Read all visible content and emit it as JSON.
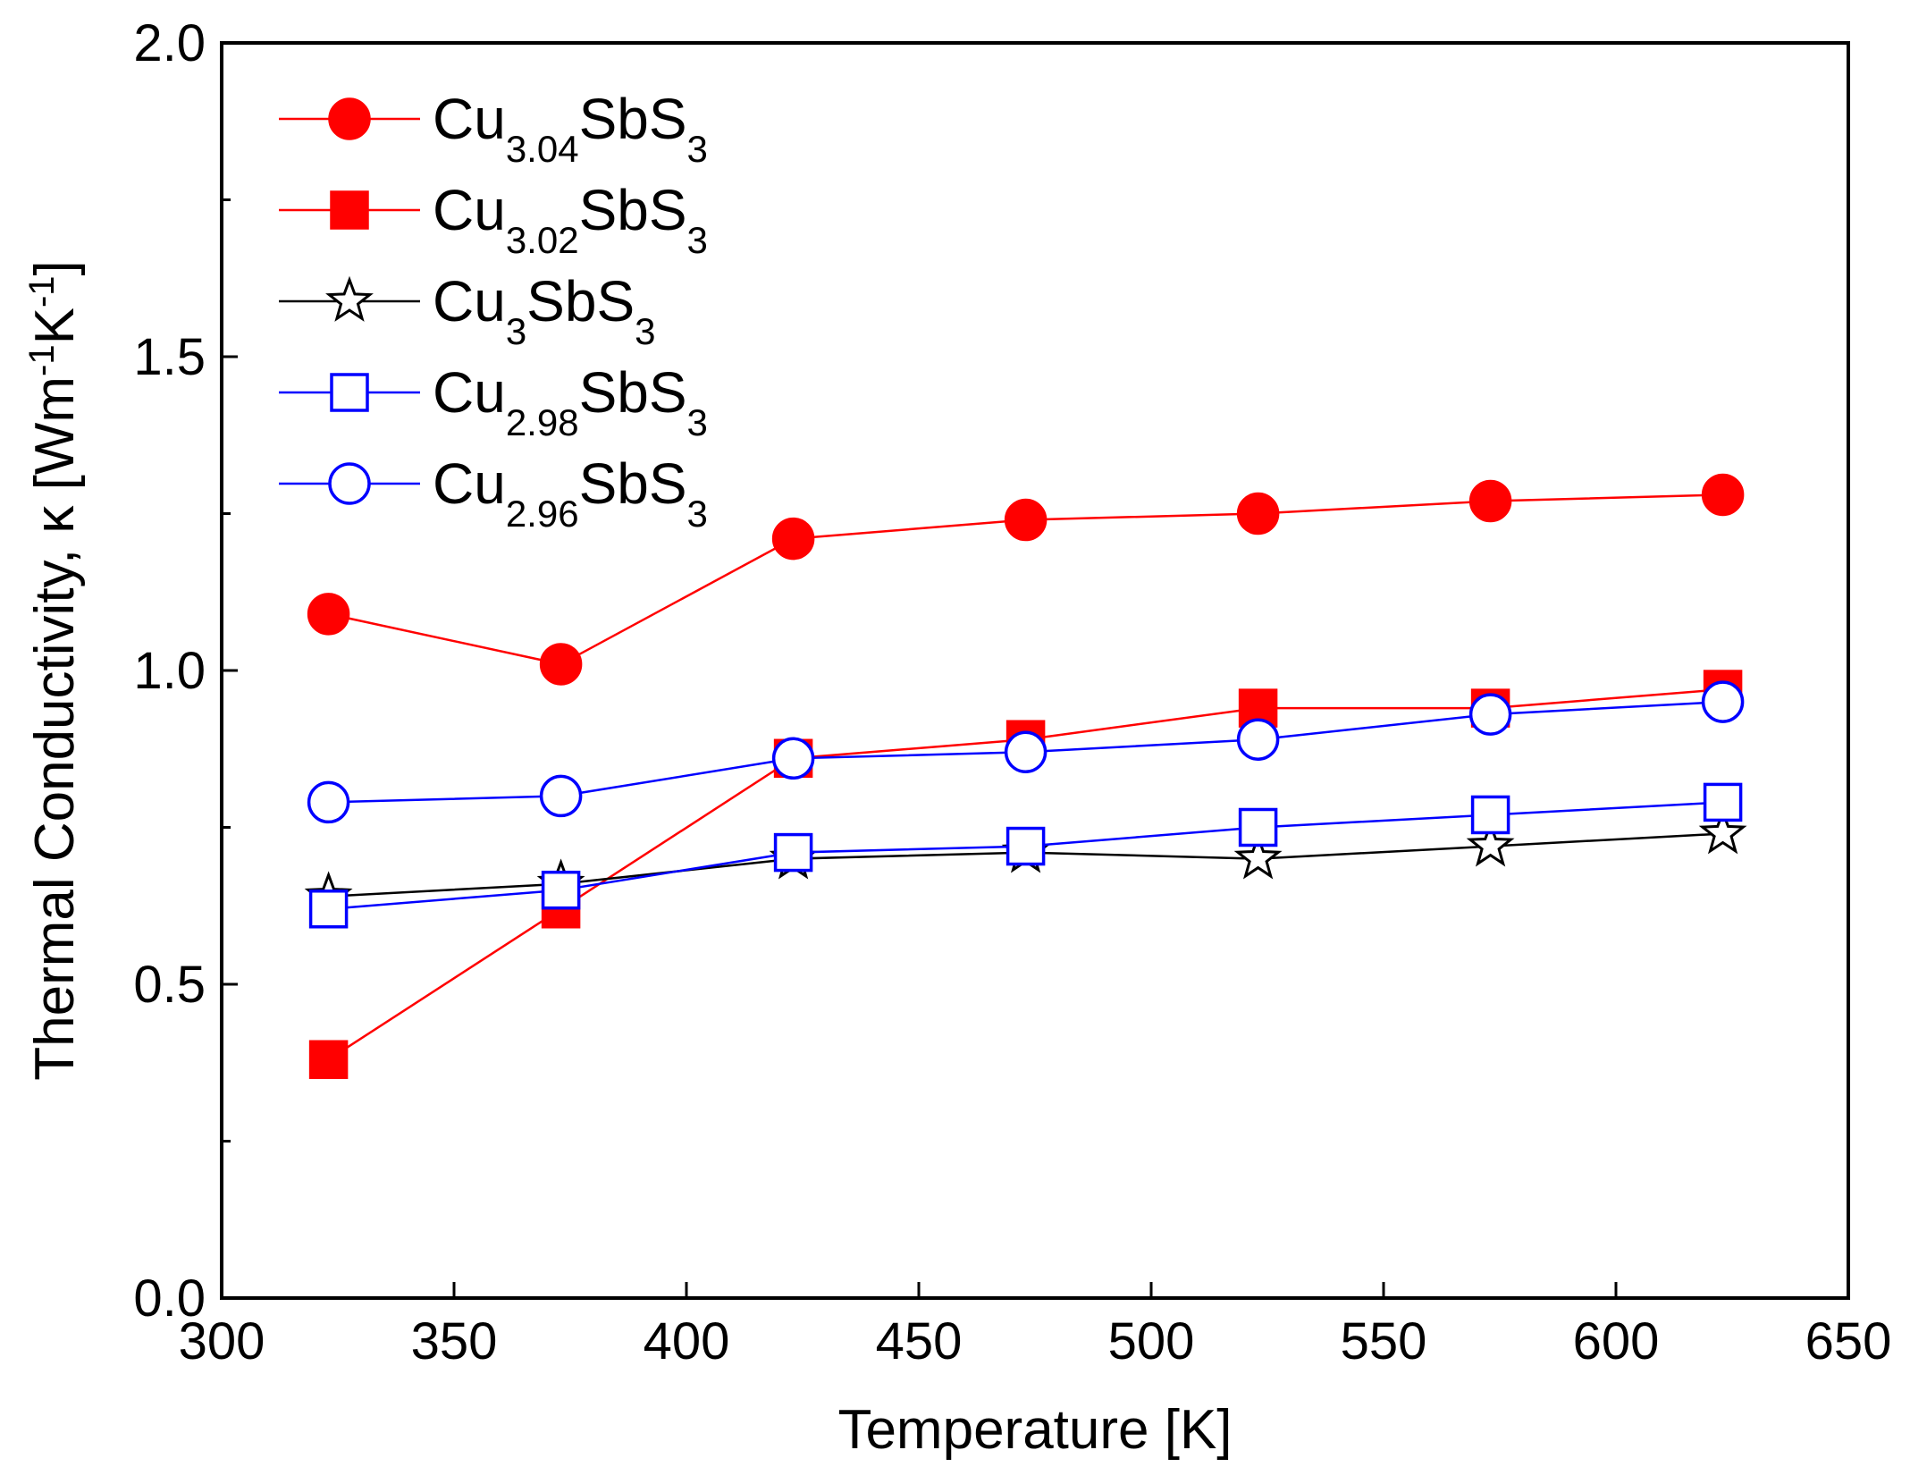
{
  "chart_data": {
    "type": "line",
    "title": "",
    "xlabel": "Temperature [K]",
    "ylabel_main": "Thermal Conductivity, κ [Wm",
    "ylabel_sup1": "-1",
    "ylabel_mid": "K",
    "ylabel_sup2": "-1",
    "ylabel_end": "]",
    "xlim": [
      300,
      650
    ],
    "ylim": [
      0.0,
      2.0
    ],
    "xticks": [
      300,
      350,
      400,
      450,
      500,
      550,
      600,
      650
    ],
    "xtick_labels": [
      "300",
      "350",
      "400",
      "450",
      "500",
      "550",
      "600",
      "650"
    ],
    "yticks": [
      0.0,
      0.5,
      1.0,
      1.5,
      2.0
    ],
    "ytick_labels": [
      "0.0",
      "0.5",
      "1.0",
      "1.5",
      "2.0"
    ],
    "yminor": [
      0.25,
      0.75,
      1.25,
      1.75
    ],
    "legend_position": "top-left",
    "x": [
      323,
      373,
      423,
      473,
      523,
      573,
      623
    ],
    "series": [
      {
        "key": "cu304",
        "name": "Cu3.04SbS3",
        "base": "Cu",
        "sub1": "3.04",
        "mid": "SbS",
        "sub2": "3",
        "color": "#ff0000",
        "marker": "circle",
        "filled": true,
        "values": [
          1.09,
          1.01,
          1.21,
          1.24,
          1.25,
          1.27,
          1.28
        ]
      },
      {
        "key": "cu302",
        "name": "Cu3.02SbS3",
        "base": "Cu",
        "sub1": "3.02",
        "mid": "SbS",
        "sub2": "3",
        "color": "#ff0000",
        "marker": "square",
        "filled": true,
        "values": [
          0.38,
          0.62,
          0.86,
          0.89,
          0.94,
          0.94,
          0.97
        ]
      },
      {
        "key": "cu300",
        "name": "Cu3SbS3",
        "base": "Cu",
        "sub1": "3",
        "mid": "SbS",
        "sub2": "3",
        "color": "#000000",
        "marker": "star",
        "filled": false,
        "values": [
          0.64,
          0.66,
          0.7,
          0.71,
          0.7,
          0.72,
          0.74
        ]
      },
      {
        "key": "cu298",
        "name": "Cu2.98SbS3",
        "base": "Cu",
        "sub1": "2.98",
        "mid": "SbS",
        "sub2": "3",
        "color": "#0000ff",
        "marker": "square",
        "filled": false,
        "values": [
          0.62,
          0.65,
          0.71,
          0.72,
          0.75,
          0.77,
          0.79
        ]
      },
      {
        "key": "cu296",
        "name": "Cu2.96SbS3",
        "base": "Cu",
        "sub1": "2.96",
        "mid": "SbS",
        "sub2": "3",
        "color": "#0000ff",
        "marker": "circle",
        "filled": false,
        "values": [
          0.79,
          0.8,
          0.86,
          0.87,
          0.89,
          0.93,
          0.95
        ]
      }
    ]
  }
}
